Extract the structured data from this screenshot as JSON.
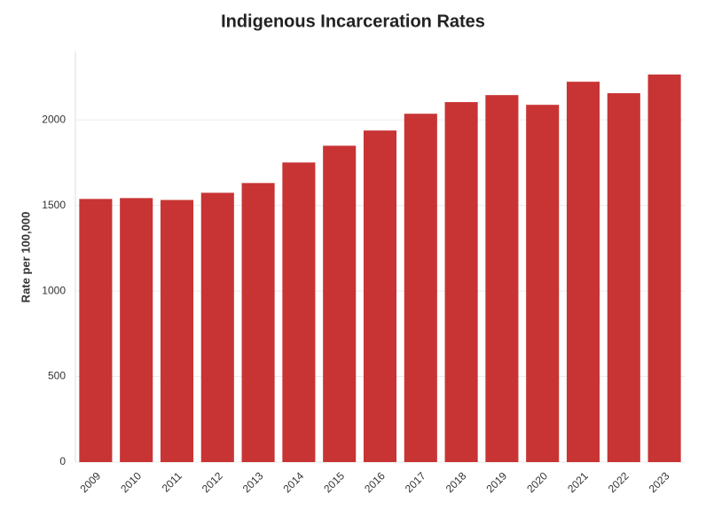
{
  "chart_data": {
    "type": "bar",
    "title": "Indigenous Incarceration Rates",
    "y_label": "Rate per 100,000",
    "categories": [
      "2009",
      "2010",
      "2011",
      "2012",
      "2013",
      "2014",
      "2015",
      "2016",
      "2017",
      "2018",
      "2019",
      "2020",
      "2021",
      "2022",
      "2023"
    ],
    "values": [
      1538,
      1543,
      1532,
      1574,
      1631,
      1751,
      1849,
      1938,
      2036,
      2104,
      2145,
      2088,
      2223,
      2156,
      2265
    ],
    "color": "#c83434",
    "ylim": [
      0,
      2400
    ],
    "yticks": [
      0,
      500,
      1000,
      1500,
      2000
    ],
    "grid": true
  }
}
